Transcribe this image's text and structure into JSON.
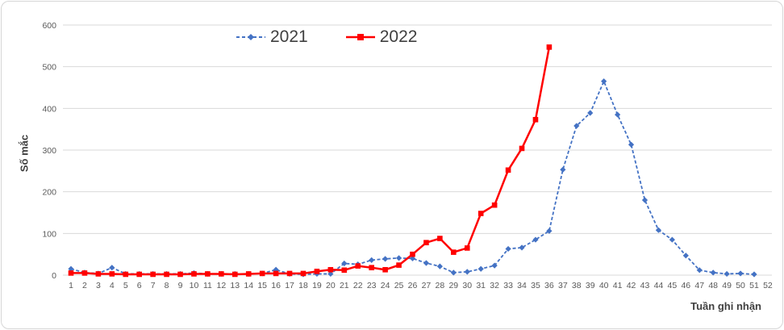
{
  "chart_data": {
    "type": "line",
    "title": "",
    "xlabel": "Tuần ghi nhận",
    "ylabel": "Số mắc",
    "ylim": [
      0,
      600
    ],
    "yticks": [
      0,
      100,
      200,
      300,
      400,
      500,
      600
    ],
    "x": [
      1,
      2,
      3,
      4,
      5,
      6,
      7,
      8,
      9,
      10,
      11,
      12,
      13,
      14,
      15,
      16,
      17,
      18,
      19,
      20,
      21,
      22,
      23,
      24,
      25,
      26,
      27,
      28,
      29,
      30,
      31,
      32,
      33,
      34,
      35,
      36,
      37,
      38,
      39,
      40,
      41,
      42,
      43,
      44,
      45,
      46,
      47,
      48,
      49,
      50,
      51,
      52
    ],
    "grid": "horizontal",
    "legend_position": "top-center",
    "gridline_color": "#d9d9d9",
    "tick_color": "#595959",
    "series": [
      {
        "name": "2021",
        "color": "#4472c4",
        "line": "dashed",
        "marker": "diamond",
        "values": [
          15,
          6,
          4,
          18,
          3,
          3,
          3,
          3,
          3,
          5,
          3,
          3,
          3,
          3,
          4,
          13,
          3,
          2,
          3,
          3,
          28,
          26,
          36,
          39,
          41,
          40,
          29,
          21,
          6,
          8,
          15,
          23,
          63,
          66,
          85,
          106,
          253,
          358,
          389,
          465,
          385,
          313,
          180,
          108,
          85,
          47,
          12,
          6,
          3,
          4,
          2
        ]
      },
      {
        "name": "2022",
        "color": "#ff0000",
        "line": "solid",
        "marker": "square",
        "values": [
          5,
          5,
          3,
          3,
          2,
          2,
          2,
          2,
          2,
          3,
          3,
          3,
          2,
          3,
          4,
          4,
          4,
          4,
          9,
          13,
          12,
          22,
          18,
          13,
          24,
          50,
          78,
          88,
          55,
          65,
          148,
          168,
          252,
          304,
          373,
          547
        ]
      }
    ]
  }
}
